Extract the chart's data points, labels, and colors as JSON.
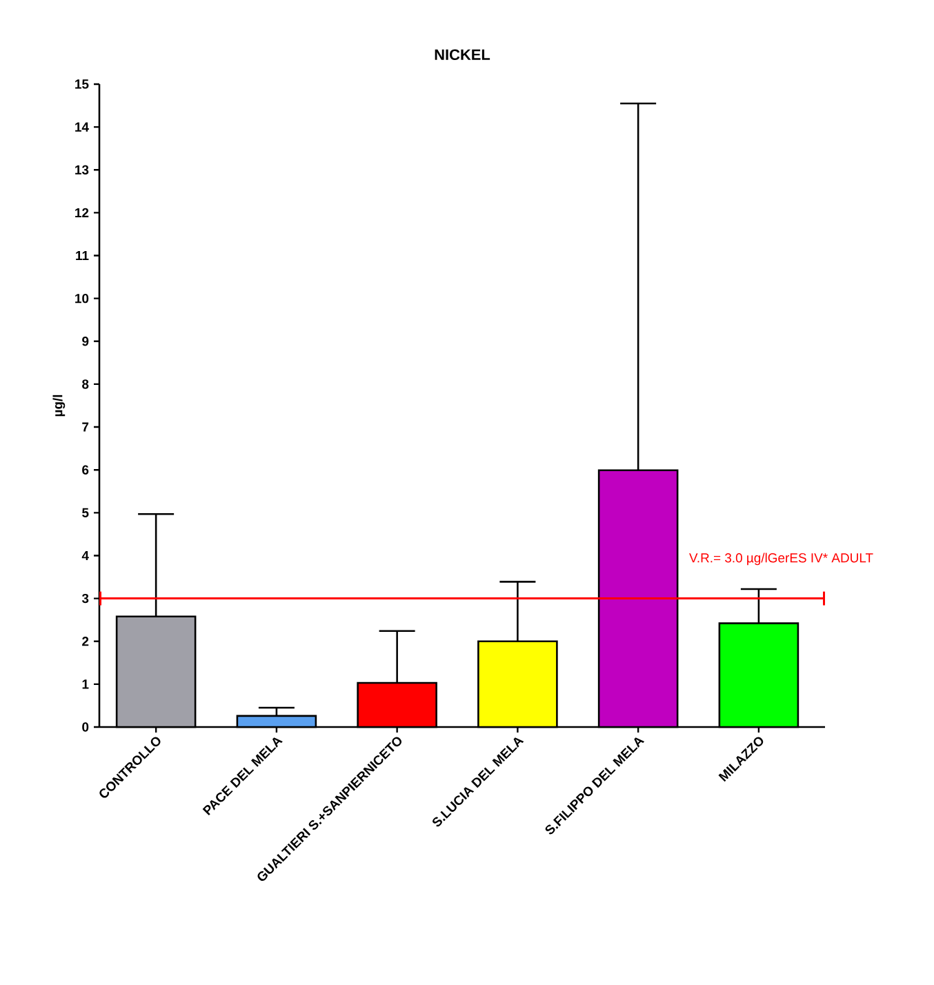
{
  "chart_data": {
    "type": "bar",
    "title": "NICKEL",
    "ylabel": "µg/l",
    "categories": [
      "CONTROLLO",
      "PACE DEL MELA",
      "GUALTIERI S.+SANPIERNICETO",
      "S.LUCIA DEL MELA",
      "S.FILIPPO DEL MELA",
      "MILAZZO"
    ],
    "values": [
      2.58,
      0.26,
      1.03,
      2.0,
      5.99,
      2.42
    ],
    "colors": [
      "#a0a0a8",
      "#5aa0f0",
      "#ff0000",
      "#ffff00",
      "#c000c0",
      "#00ff00"
    ],
    "errors": [
      [
        2.58,
        4.97
      ],
      [
        0.26,
        0.45
      ],
      [
        1.03,
        2.24
      ],
      [
        2.0,
        3.39
      ],
      [
        5.99,
        14.55
      ],
      [
        2.42,
        3.22
      ]
    ],
    "ylim": [
      0,
      15
    ],
    "yticks": [
      0,
      1,
      2,
      3,
      4,
      5,
      6,
      7,
      8,
      9,
      10,
      11,
      12,
      13,
      14,
      15
    ],
    "ref_lines": [
      {
        "axis": "y",
        "value": 3.0,
        "label": "V.R.= 3.0 µg/lGerES IV* ADULT",
        "color": "#ff0000"
      }
    ],
    "grid": false
  }
}
